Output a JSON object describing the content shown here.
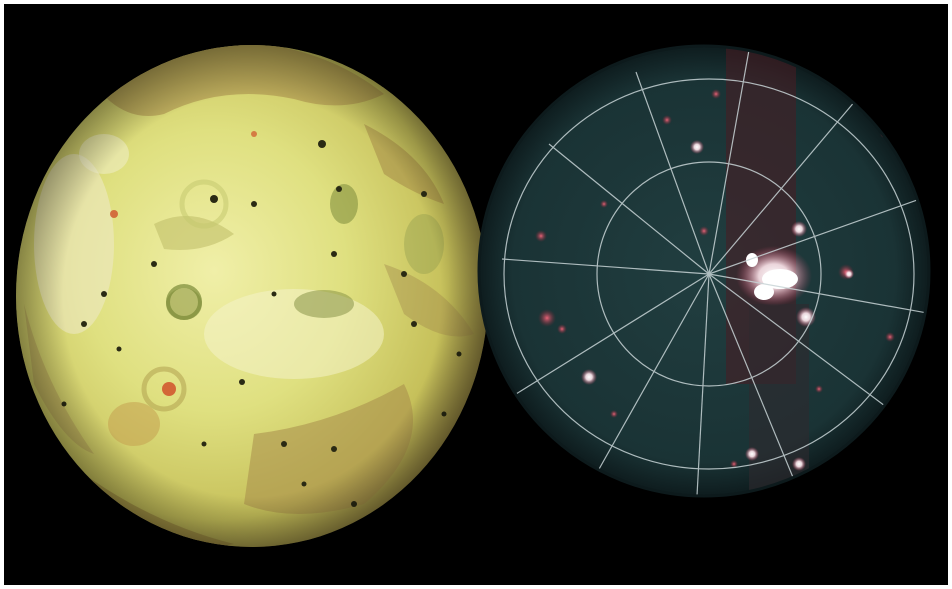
{
  "image": {
    "left_panel": {
      "subject": "volcanic-moon-visible-light",
      "colors": {
        "base": "#d8d86a",
        "highlight": "#f2f2b0",
        "terrain_brown": "#9a7a45",
        "terrain_green": "#7d8a3e",
        "spot_dark": "#2a2a14",
        "spot_red": "#d0512a"
      }
    },
    "right_panel": {
      "subject": "volcanic-moon-infrared-with-lat-long-grid",
      "colors": {
        "disc": "#1c3638",
        "disc_edge": "#0d1a1c",
        "grid_line": "#c8d4d6",
        "glow_white": "#ffffff",
        "glow_red": "#b8374a",
        "band_red": "#4a1c22"
      }
    },
    "background_color": "#000000",
    "frame_color": "#ffffff"
  }
}
